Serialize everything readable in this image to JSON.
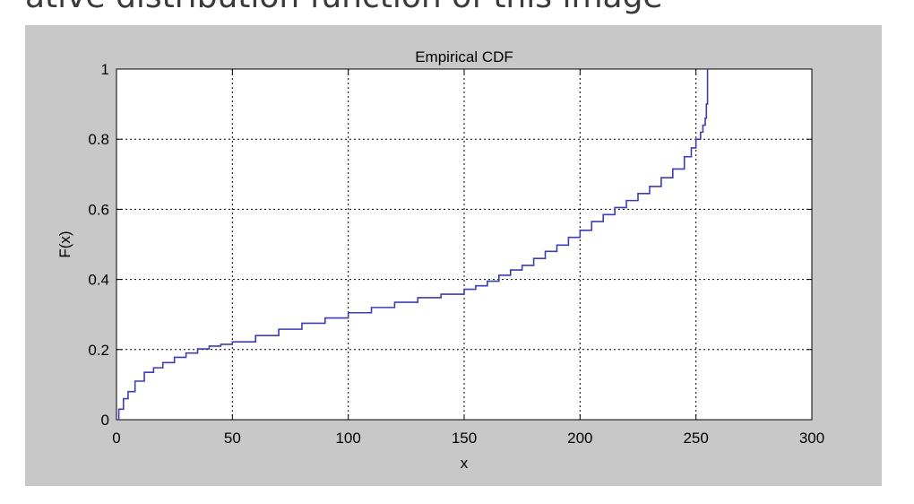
{
  "page": {
    "header_text": "ative distribution function of this image"
  },
  "chart_data": {
    "type": "line",
    "title": "Empirical CDF",
    "xlabel": "x",
    "ylabel": "F(x)",
    "xlim": [
      0,
      300
    ],
    "ylim": [
      0,
      1
    ],
    "xticks": [
      0,
      50,
      100,
      150,
      200,
      250,
      300
    ],
    "yticks": [
      0,
      0.2,
      0.4,
      0.6,
      0.8,
      1
    ],
    "xtick_labels": [
      "0",
      "50",
      "100",
      "150",
      "200",
      "250",
      "300"
    ],
    "ytick_labels": [
      "0",
      "0.2",
      "0.4",
      "0.6",
      "0.8",
      "1"
    ],
    "grid": true,
    "grid_style": "dotted",
    "line_color": "#3c3cb4",
    "series": [
      {
        "x": [
          0,
          1,
          3,
          5,
          8,
          12,
          16,
          20,
          25,
          30,
          35,
          40,
          45,
          50,
          60,
          70,
          80,
          90,
          100,
          110,
          120,
          130,
          140,
          150,
          155,
          160,
          165,
          170,
          175,
          180,
          185,
          190,
          195,
          200,
          205,
          210,
          215,
          220,
          225,
          230,
          235,
          240,
          245,
          248,
          250,
          252,
          253,
          254,
          254.5,
          255
        ],
        "y": [
          0,
          0.03,
          0.06,
          0.08,
          0.11,
          0.135,
          0.148,
          0.163,
          0.178,
          0.19,
          0.202,
          0.21,
          0.215,
          0.222,
          0.24,
          0.258,
          0.275,
          0.29,
          0.305,
          0.32,
          0.335,
          0.348,
          0.358,
          0.372,
          0.382,
          0.395,
          0.412,
          0.427,
          0.44,
          0.46,
          0.48,
          0.498,
          0.52,
          0.54,
          0.565,
          0.585,
          0.605,
          0.625,
          0.645,
          0.665,
          0.69,
          0.715,
          0.75,
          0.775,
          0.8,
          0.82,
          0.84,
          0.86,
          0.9,
          1.0
        ]
      }
    ]
  }
}
